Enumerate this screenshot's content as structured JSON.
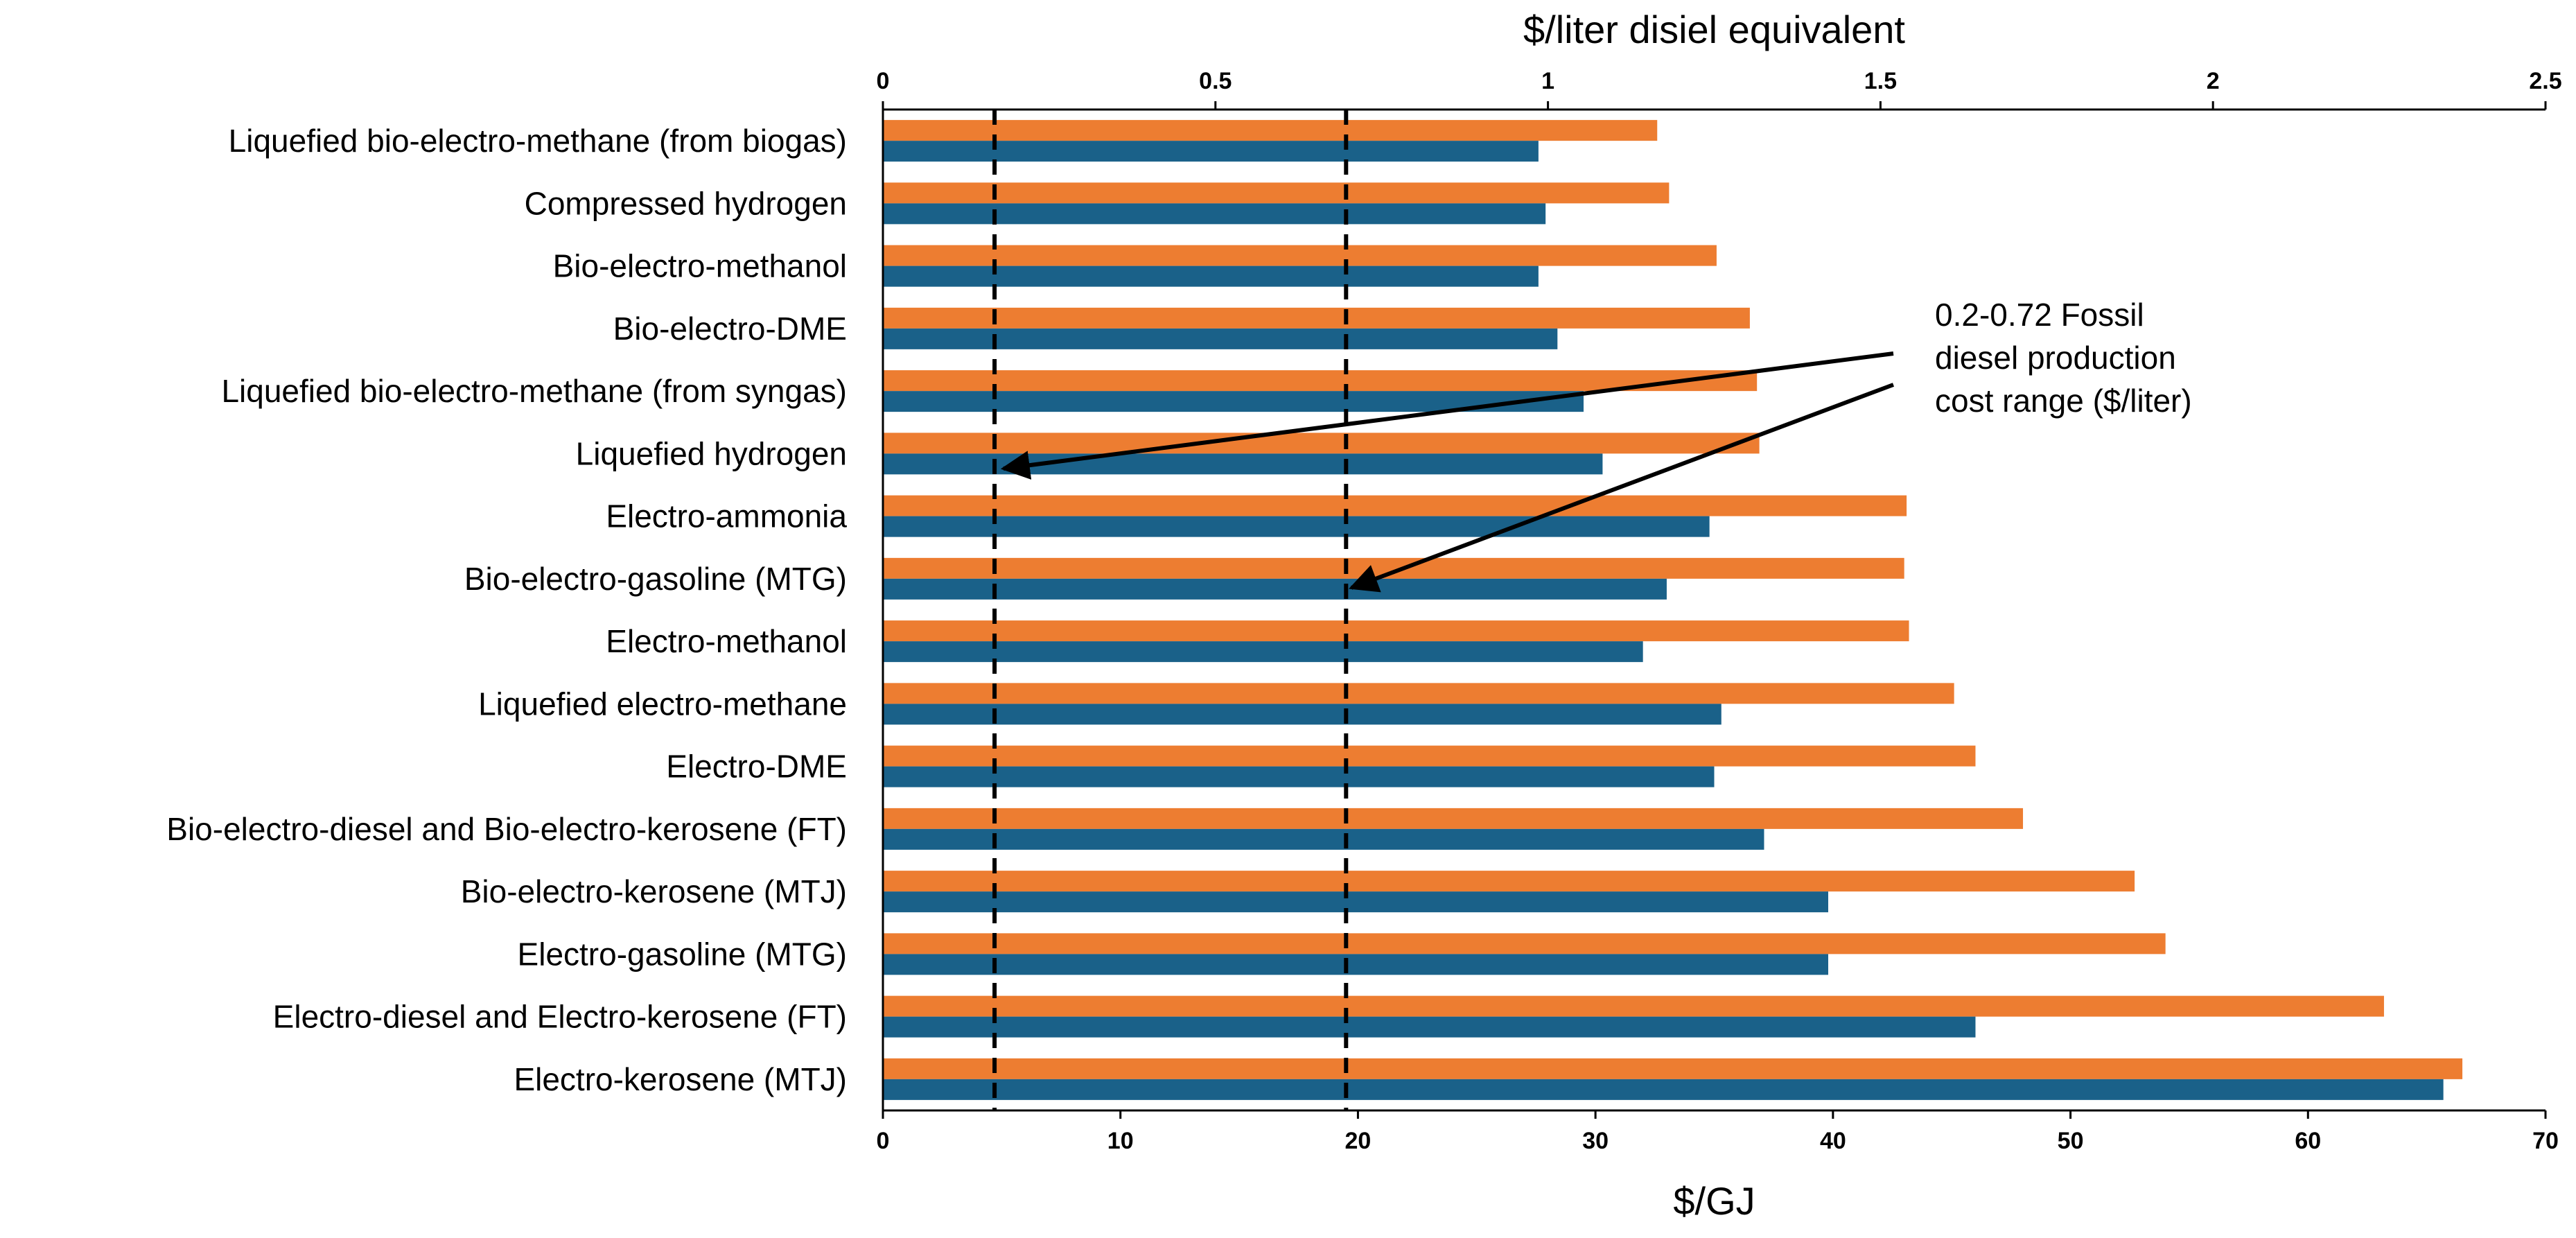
{
  "chart_data": {
    "type": "bar",
    "orientation": "horizontal",
    "title": "",
    "xlabel": "$/GJ",
    "x2label": "$/liter disiel equivalent",
    "xlim": [
      0,
      70
    ],
    "x2lim": [
      0,
      2.5
    ],
    "xticks": [
      "0",
      "10",
      "20",
      "30",
      "40",
      "50",
      "60",
      "70"
    ],
    "x2ticks": [
      "0",
      "0.5",
      "1",
      "1.5",
      "2",
      "2.5"
    ],
    "categories": [
      "Liquefied bio-electro-methane (from biogas)",
      "Compressed hydrogen",
      "Bio-electro-methanol",
      "Bio-electro-DME",
      "Liquefied bio-electro-methane (from syngas)",
      "Liquefied hydrogen",
      "Electro-ammonia",
      "Bio-electro-gasoline (MTG)",
      "Electro-methanol",
      "Liquefied electro-methane",
      "Electro-DME",
      "Bio-electro-diesel and Bio-electro-kerosene (FT)",
      "Bio-electro-kerosene (MTJ)",
      "Electro-gasoline (MTG)",
      "Electro-diesel and Electro-kerosene (FT)",
      "Electro-kerosene (MTJ)"
    ],
    "series": [
      {
        "name": "orange",
        "color": "#ED7D31",
        "values": [
          32.6,
          33.1,
          35.1,
          36.5,
          36.8,
          36.9,
          43.1,
          43.0,
          43.2,
          45.1,
          46.0,
          48.0,
          52.7,
          54.0,
          63.2,
          66.5
        ]
      },
      {
        "name": "blue",
        "color": "#1A6189",
        "values": [
          27.6,
          27.9,
          27.6,
          28.4,
          29.5,
          30.3,
          34.8,
          33.0,
          32.0,
          35.3,
          35.0,
          37.1,
          39.8,
          39.8,
          46.0,
          65.7
        ]
      }
    ],
    "reference_lines": [
      {
        "value": 4.7,
        "unit": "$/GJ",
        "style": "dashed"
      },
      {
        "value": 19.5,
        "unit": "$/GJ",
        "style": "dashed"
      }
    ],
    "annotation": {
      "lines": [
        "0.2-0.72 Fossil",
        "diesel production",
        "cost range ($/liter)"
      ]
    },
    "grid": false,
    "legend": "none"
  }
}
